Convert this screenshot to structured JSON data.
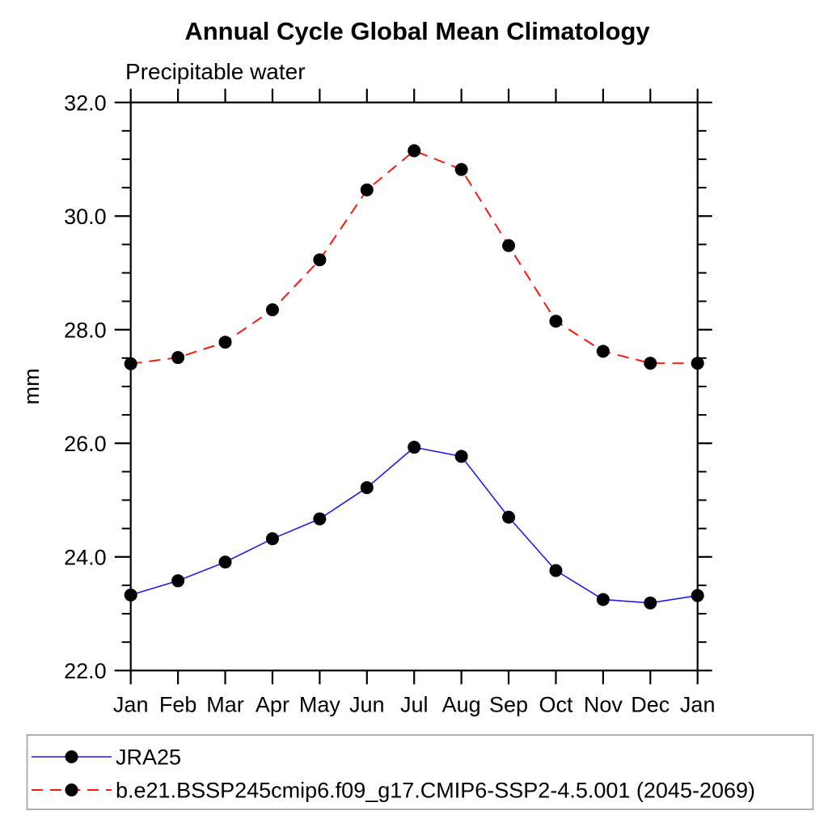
{
  "chart_data": {
    "type": "line",
    "title": "Annual Cycle Global Mean Climatology",
    "subtitle": "Precipitable water",
    "ylabel": "mm",
    "categories": [
      "Jan",
      "Feb",
      "Mar",
      "Apr",
      "May",
      "Jun",
      "Jul",
      "Aug",
      "Sep",
      "Oct",
      "Nov",
      "Dec",
      "Jan"
    ],
    "series": [
      {
        "name": "JRA25",
        "color": "#1c1cf0",
        "line_style": "solid",
        "line_width": 1.6,
        "marker": "filled-circle",
        "marker_color": "#000000",
        "values": [
          23.33,
          23.58,
          23.91,
          24.32,
          24.67,
          25.22,
          25.93,
          25.77,
          24.7,
          23.76,
          23.25,
          23.19,
          23.32
        ]
      },
      {
        "name": "b.e21.BSSP245cmip6.f09_g17.CMIP6-SSP2-4.5.001 (2045-2069)",
        "color": "#f91a0e",
        "line_style": "dashed",
        "line_width": 2.0,
        "marker": "filled-circle",
        "marker_color": "#000000",
        "values": [
          27.4,
          27.51,
          27.78,
          28.35,
          29.23,
          30.46,
          31.15,
          30.82,
          29.48,
          28.15,
          27.62,
          27.41,
          27.41
        ]
      }
    ],
    "ylim": [
      22.0,
      32.0
    ],
    "ytick_major": [
      22.0,
      24.0,
      26.0,
      28.0,
      30.0,
      32.0
    ],
    "ytick_labels": [
      "22.0",
      "24.0",
      "26.0",
      "28.0",
      "30.0",
      "32.0"
    ],
    "ytick_minor_step": 0.5,
    "grid": false,
    "frame": "boxed, ticks point outward on all four sides",
    "legend_position": "bottom-left box"
  },
  "legend": {
    "entries": [
      {
        "label": "JRA25"
      },
      {
        "label": "b.e21.BSSP245cmip6.f09_g17.CMIP6-SSP2-4.5.001 (2045-2069)"
      }
    ],
    "border_color": "#b0b0b0"
  },
  "colors": {
    "background": "#ffffff",
    "frame": "#000000",
    "text": "#000000",
    "jra25_line": "#1c1cf0",
    "ssp_line": "#f91a0e",
    "marker": "#000000"
  }
}
